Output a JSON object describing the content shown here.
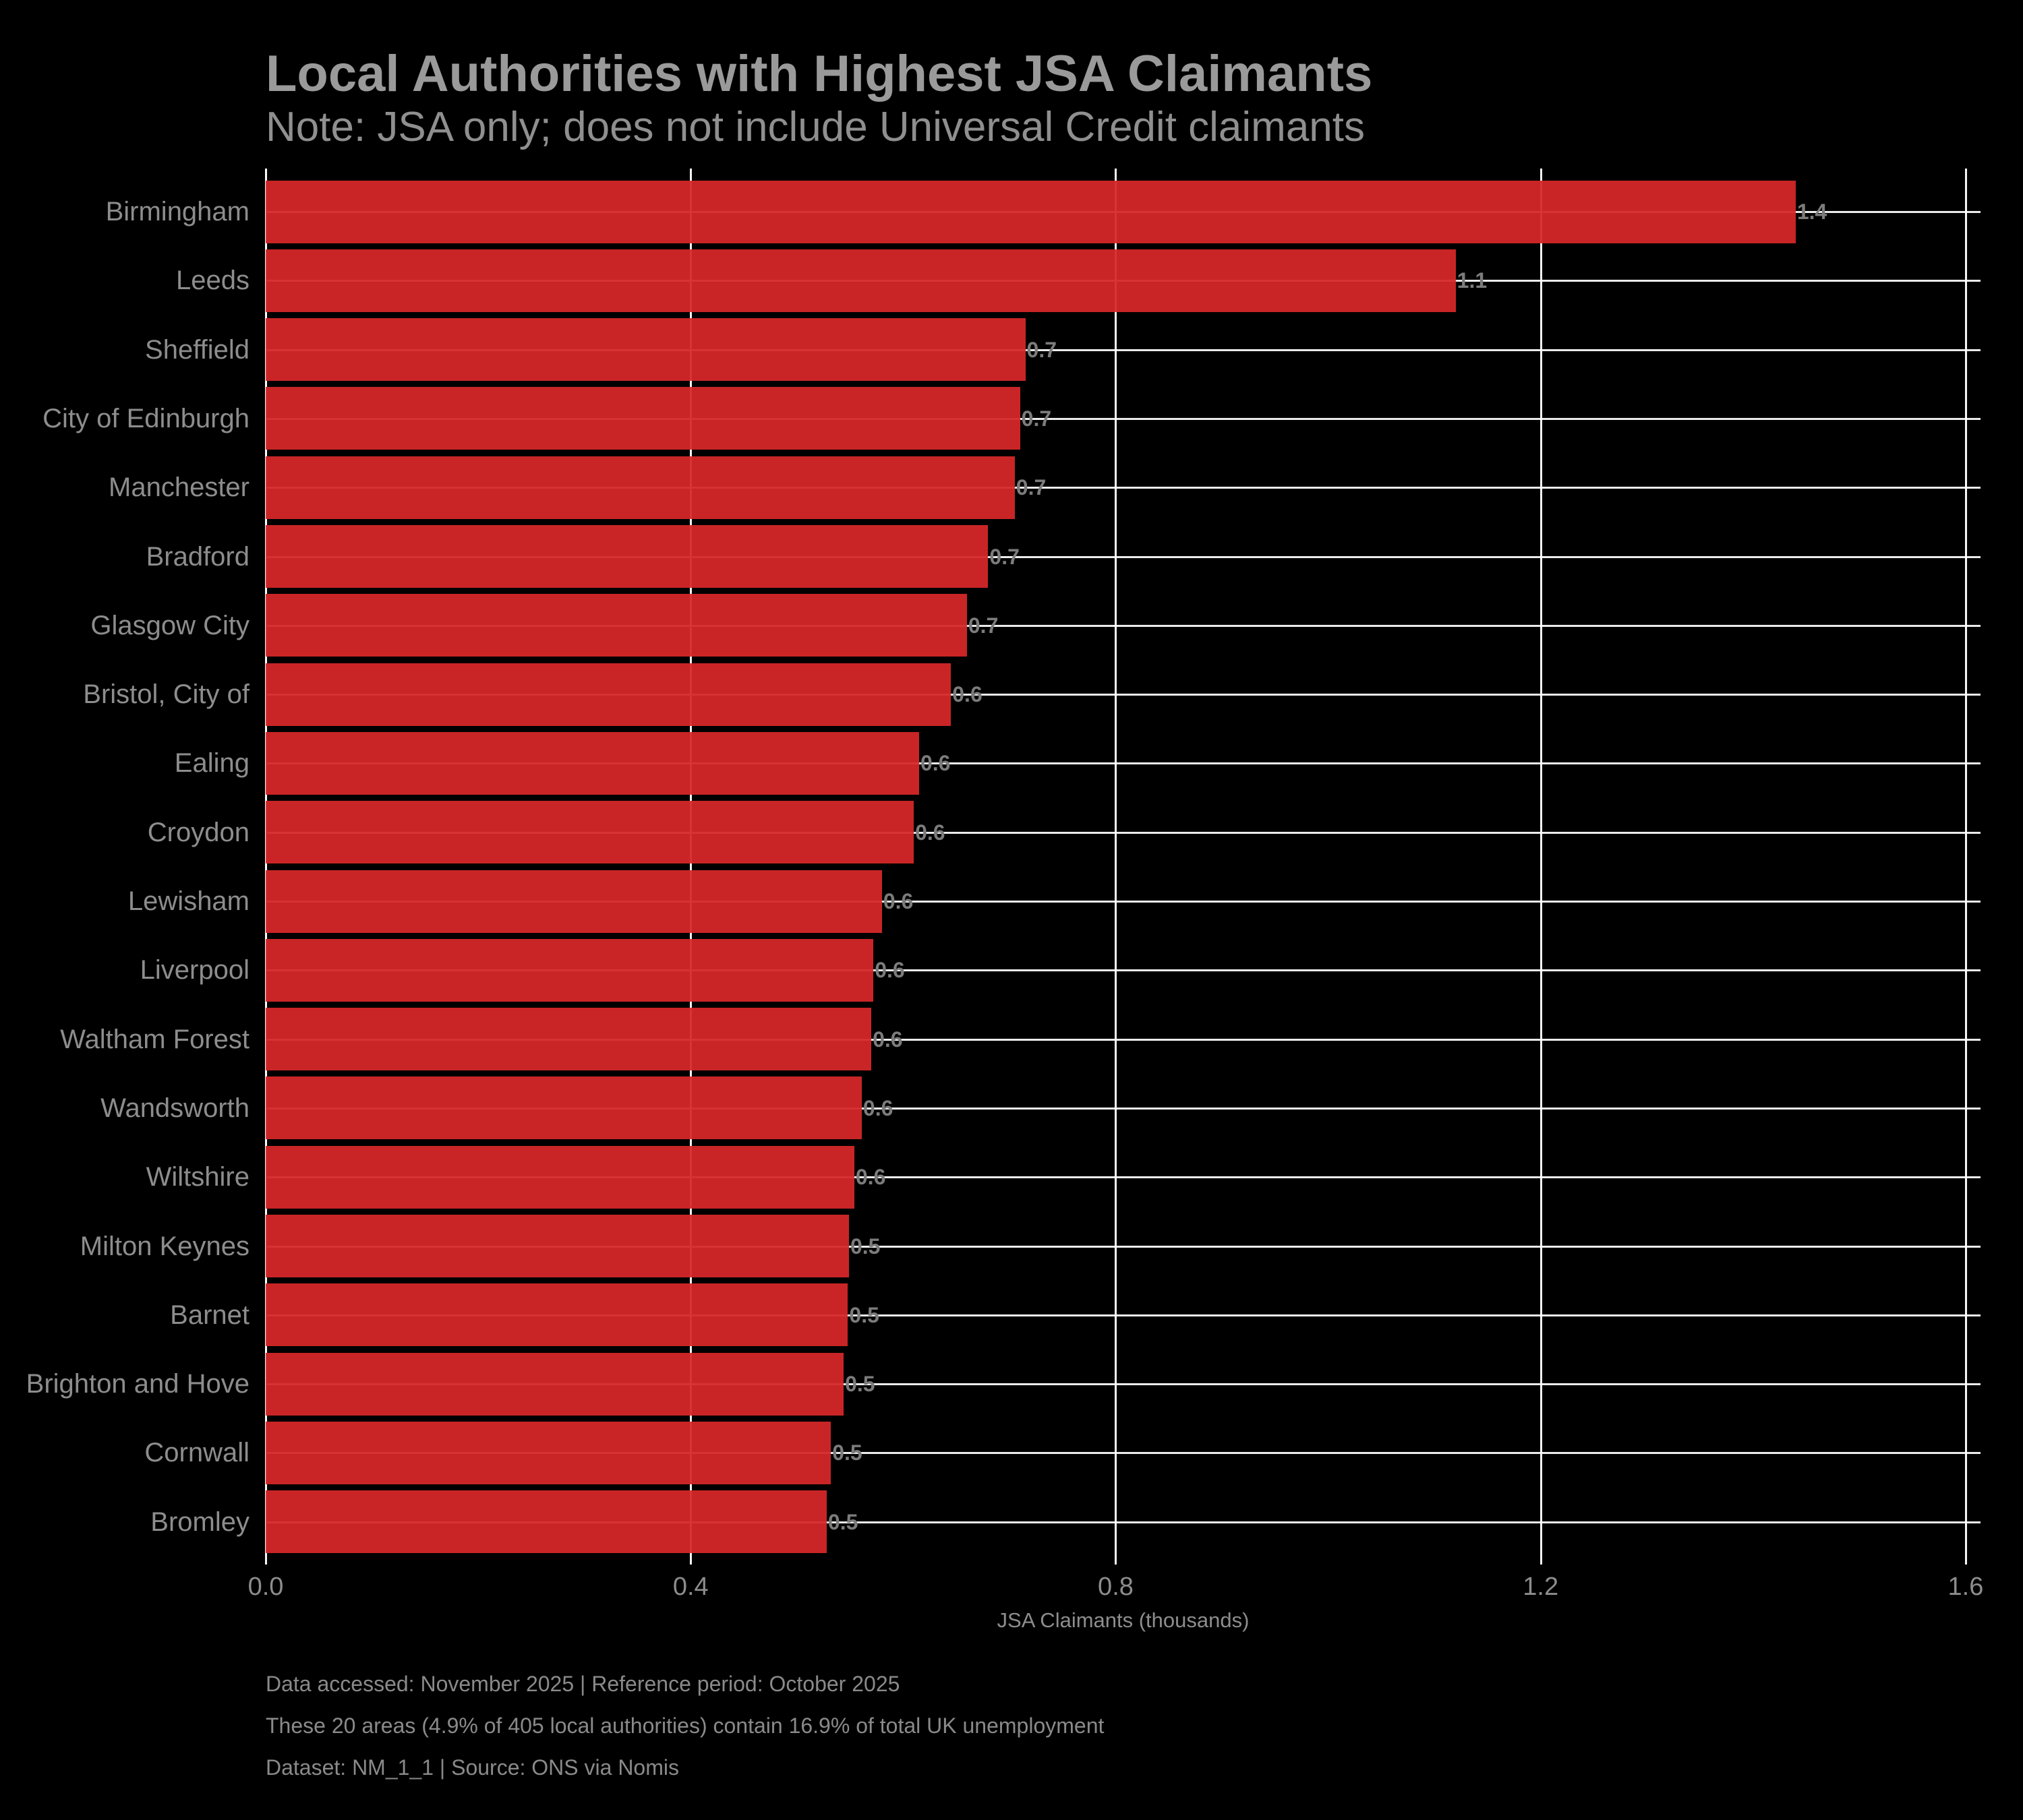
{
  "title": "Local Authorities with Highest JSA Claimants",
  "subtitle": "Note: JSA only; does not include Universal Credit claimants",
  "xaxis": {
    "label": "JSA Claimants (thousands)"
  },
  "chart_data": {
    "type": "bar",
    "orientation": "horizontal",
    "title": "Local Authorities with Highest JSA Claimants",
    "subtitle": "Note: JSA only; does not include Universal Credit claimants",
    "xlabel": "JSA Claimants (thousands)",
    "ylabel": "",
    "xlim": [
      0,
      1.614
    ],
    "xticks": [
      0.0,
      0.4,
      0.8,
      1.2,
      1.6
    ],
    "xtick_labels": [
      "0.0",
      "0.4",
      "0.8",
      "1.2",
      "1.6"
    ],
    "grid": true,
    "legend": false,
    "bar_color": "#d62728",
    "background_color": "#000000",
    "categories": [
      "Birmingham",
      "Leeds",
      "Sheffield",
      "City of Edinburgh",
      "Manchester",
      "Bradford",
      "Glasgow City",
      "Bristol, City of",
      "Ealing",
      "Croydon",
      "Lewisham",
      "Liverpool",
      "Waltham Forest",
      "Wandsworth",
      "Wiltshire",
      "Milton Keynes",
      "Barnet",
      "Brighton and Hove",
      "Cornwall",
      "Bromley"
    ],
    "values": [
      1.44,
      1.12,
      0.715,
      0.71,
      0.705,
      0.68,
      0.66,
      0.645,
      0.615,
      0.61,
      0.58,
      0.572,
      0.57,
      0.561,
      0.554,
      0.549,
      0.548,
      0.544,
      0.532,
      0.528
    ],
    "bar_labels": [
      "1.4",
      "1.1",
      "0.7",
      "0.7",
      "0.7",
      "0.7",
      "0.7",
      "0.6",
      "0.6",
      "0.6",
      "0.6",
      "0.6",
      "0.6",
      "0.6",
      "0.6",
      "0.5",
      "0.5",
      "0.5",
      "0.5",
      "0.5"
    ]
  },
  "footer": {
    "line1": "Data accessed: November 2025 | Reference period: October 2025",
    "line2": "These 20 areas (4.9% of 405 local authorities) contain 16.9% of total UK unemployment",
    "line3": "Dataset: NM_1_1 | Source: ONS via Nomis"
  }
}
